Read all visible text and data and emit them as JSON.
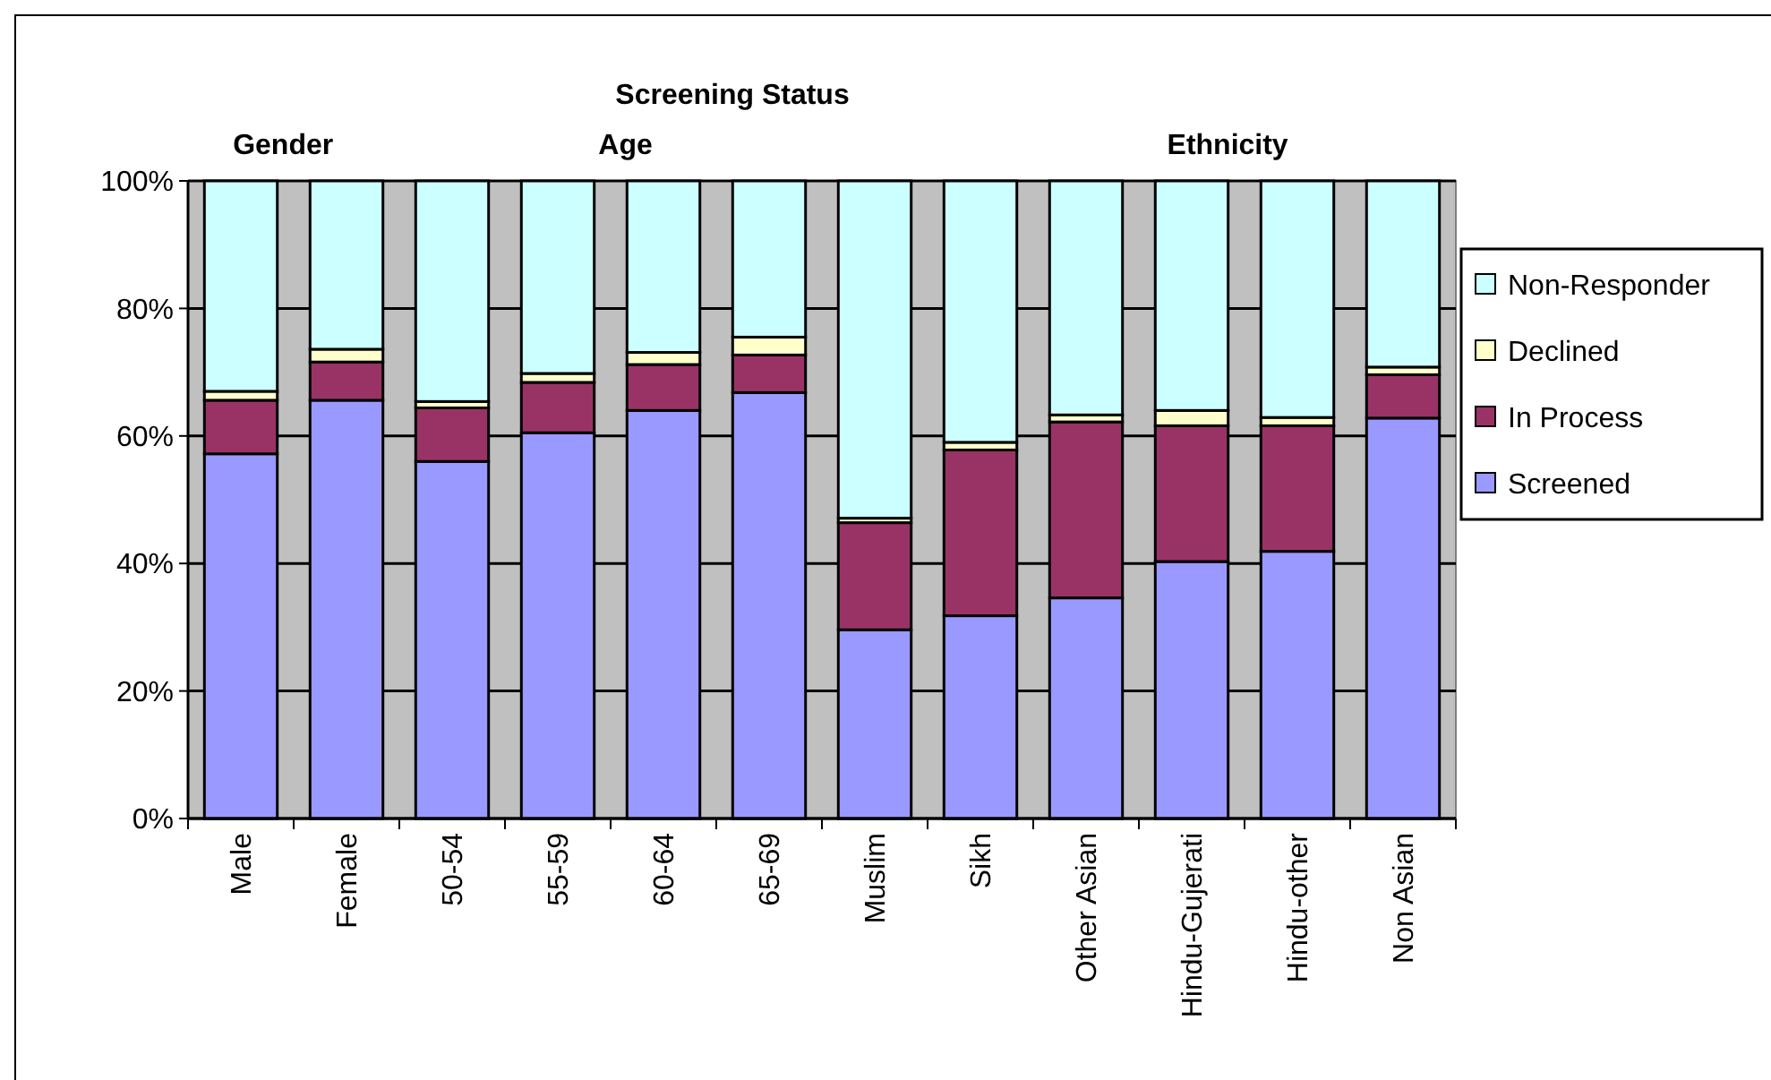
{
  "chart_data": {
    "type": "bar",
    "title": "Screening Status",
    "stacked": true,
    "categories": [
      "Male",
      "Female",
      "50-54",
      "55-59",
      "60-64",
      "65-69",
      "Muslim",
      "Sikh",
      "Other Asian",
      "Hindu-Gujerati",
      "Hindu-other",
      "Non Asian"
    ],
    "series": [
      {
        "name": "Screened",
        "color": "#9999ff",
        "values": [
          57.2,
          65.6,
          56.0,
          60.5,
          64.0,
          66.8,
          29.6,
          31.8,
          34.6,
          40.3,
          41.9,
          62.8
        ]
      },
      {
        "name": "In Process",
        "color": "#993366",
        "values": [
          8.4,
          6.0,
          8.4,
          7.9,
          7.2,
          5.9,
          16.8,
          26.0,
          27.6,
          21.3,
          19.7,
          6.8
        ]
      },
      {
        "name": "Declined",
        "color": "#ffffcc",
        "values": [
          1.4,
          2.0,
          1.0,
          1.4,
          1.9,
          2.8,
          0.7,
          1.2,
          1.1,
          2.4,
          1.3,
          1.2
        ]
      },
      {
        "name": "Non-Responder",
        "color": "#ccffff",
        "values": [
          33.0,
          26.4,
          34.6,
          30.2,
          26.9,
          24.5,
          52.9,
          41.0,
          36.7,
          36.0,
          37.1,
          29.2
        ]
      }
    ],
    "ylim": [
      0,
      100
    ],
    "yticks": [
      {
        "value": 0,
        "label": "0%"
      },
      {
        "value": 20,
        "label": "20%"
      },
      {
        "value": 40,
        "label": "40%"
      },
      {
        "value": 60,
        "label": "60%"
      },
      {
        "value": 80,
        "label": "80%"
      },
      {
        "value": 100,
        "label": "100%"
      }
    ],
    "grid": "y",
    "legend": "right",
    "annotations": [
      "Gender",
      "Age",
      "Ethnicity"
    ]
  }
}
